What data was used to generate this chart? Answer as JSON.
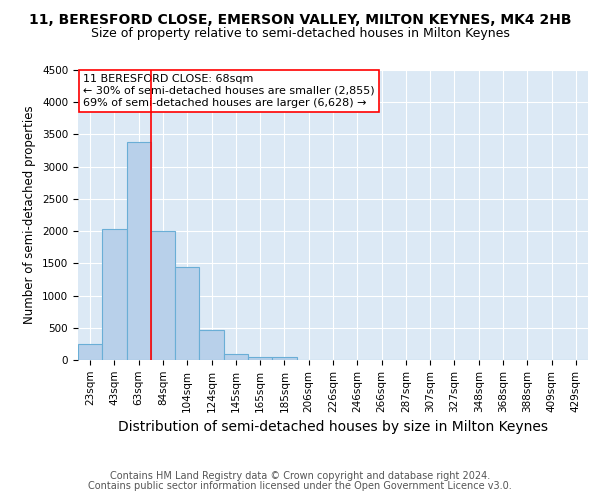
{
  "title": "11, BERESFORD CLOSE, EMERSON VALLEY, MILTON KEYNES, MK4 2HB",
  "subtitle": "Size of property relative to semi-detached houses in Milton Keynes",
  "xlabel": "Distribution of semi-detached houses by size in Milton Keynes",
  "ylabel": "Number of semi-detached properties",
  "bar_labels": [
    "23sqm",
    "43sqm",
    "63sqm",
    "84sqm",
    "104sqm",
    "124sqm",
    "145sqm",
    "165sqm",
    "185sqm",
    "206sqm",
    "226sqm",
    "246sqm",
    "266sqm",
    "287sqm",
    "307sqm",
    "327sqm",
    "348sqm",
    "368sqm",
    "388sqm",
    "409sqm",
    "429sqm"
  ],
  "bar_values": [
    250,
    2030,
    3380,
    2000,
    1450,
    470,
    95,
    45,
    50,
    0,
    0,
    0,
    0,
    0,
    0,
    0,
    0,
    0,
    0,
    0,
    0
  ],
  "bar_color": "#b8d0ea",
  "bar_edge_color": "#6aaed6",
  "background_color": "#dce9f5",
  "grid_color": "#ffffff",
  "ylim": [
    0,
    4500
  ],
  "yticks": [
    0,
    500,
    1000,
    1500,
    2000,
    2500,
    3000,
    3500,
    4000,
    4500
  ],
  "red_line_x": 2.5,
  "annotation_line1": "11 BERESFORD CLOSE: 68sqm",
  "annotation_line2": "← 30% of semi-detached houses are smaller (2,855)",
  "annotation_line3": "69% of semi-detached houses are larger (6,628) →",
  "footer_line1": "Contains HM Land Registry data © Crown copyright and database right 2024.",
  "footer_line2": "Contains public sector information licensed under the Open Government Licence v3.0.",
  "title_fontsize": 10,
  "subtitle_fontsize": 9,
  "xlabel_fontsize": 10,
  "ylabel_fontsize": 8.5,
  "tick_fontsize": 7.5,
  "annotation_fontsize": 8,
  "footer_fontsize": 7
}
